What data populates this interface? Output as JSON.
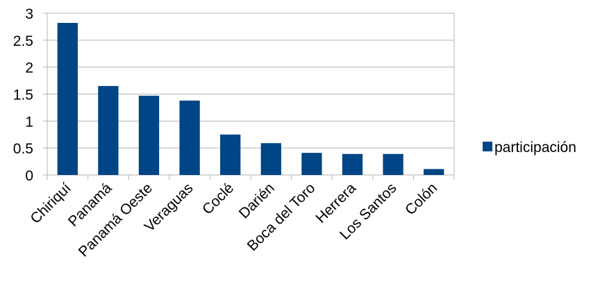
{
  "chart_data": {
    "type": "bar",
    "categories": [
      "Chiriquí",
      "Panamá",
      "Panamá Oeste",
      "Veraguas",
      "Coclé",
      "Darién",
      "Boca del Toro",
      "Herrera",
      "Los Santos",
      "Colón"
    ],
    "series": [
      {
        "name": "participación",
        "values": [
          2.82,
          1.65,
          1.47,
          1.38,
          0.75,
          0.59,
          0.41,
          0.39,
          0.39,
          0.11
        ],
        "color": "#004586"
      }
    ],
    "yticks": [
      "0",
      "0.5",
      "1",
      "1.5",
      "2",
      "2.5",
      "3"
    ],
    "ylim": [
      0,
      3
    ],
    "grid": true,
    "legend_position": "right"
  }
}
